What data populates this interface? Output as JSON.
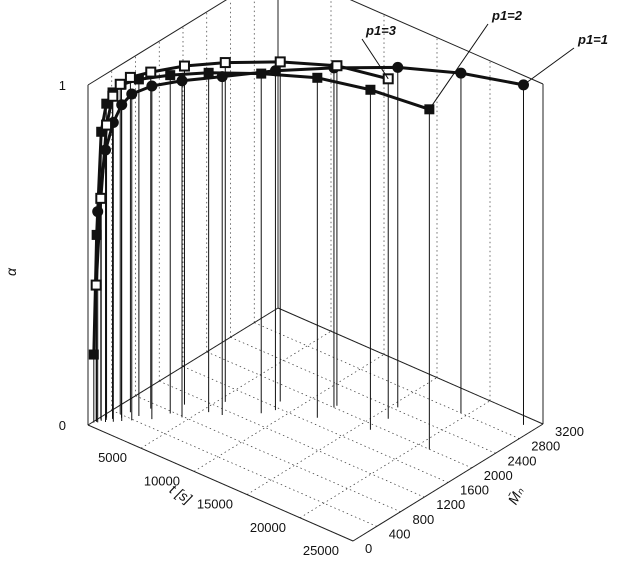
{
  "chart_data": {
    "type": "line",
    "projection": "3d",
    "title": "",
    "xlabel": "t [s]",
    "ylabel": "M̄ₙ",
    "zlabel": "α",
    "xlim": [
      0,
      25000
    ],
    "ylim": [
      0,
      3200
    ],
    "zlim": [
      0,
      1
    ],
    "x_ticks": [
      "5000",
      "10000",
      "15000",
      "20000",
      "25000"
    ],
    "y_ticks": [
      "0",
      "400",
      "800",
      "1200",
      "1600",
      "2000",
      "2400",
      "2800",
      "3200"
    ],
    "z_ticks": [
      "0",
      "1"
    ],
    "grid": true,
    "drop_lines": true,
    "series": [
      {
        "name": "p1=1",
        "marker": "circle",
        "points": [
          {
            "x": 300,
            "y": 110,
            "z": 0.62
          },
          {
            "x": 700,
            "y": 170,
            "z": 0.8
          },
          {
            "x": 1100,
            "y": 230,
            "z": 0.88
          },
          {
            "x": 1500,
            "y": 300,
            "z": 0.93
          },
          {
            "x": 2000,
            "y": 380,
            "z": 0.96
          },
          {
            "x": 3000,
            "y": 540,
            "z": 0.98
          },
          {
            "x": 4500,
            "y": 780,
            "z": 0.99
          },
          {
            "x": 6500,
            "y": 1100,
            "z": 0.995
          },
          {
            "x": 9000,
            "y": 1550,
            "z": 0.998
          },
          {
            "x": 12000,
            "y": 2000,
            "z": 0.999
          },
          {
            "x": 15500,
            "y": 2450,
            "z": 1.0
          },
          {
            "x": 19500,
            "y": 2800,
            "z": 1.0
          },
          {
            "x": 24000,
            "y": 3050,
            "z": 1.0
          }
        ]
      },
      {
        "name": "p1=2",
        "marker": "square",
        "points": [
          {
            "x": 100,
            "y": 80,
            "z": 0.2
          },
          {
            "x": 200,
            "y": 110,
            "z": 0.55
          },
          {
            "x": 350,
            "y": 160,
            "z": 0.85
          },
          {
            "x": 550,
            "y": 210,
            "z": 0.93
          },
          {
            "x": 800,
            "y": 270,
            "z": 0.96
          },
          {
            "x": 1200,
            "y": 350,
            "z": 0.98
          },
          {
            "x": 2000,
            "y": 500,
            "z": 0.99
          },
          {
            "x": 3500,
            "y": 760,
            "z": 0.995
          },
          {
            "x": 5500,
            "y": 1050,
            "z": 0.998
          },
          {
            "x": 8500,
            "y": 1400,
            "z": 0.999
          },
          {
            "x": 12000,
            "y": 1720,
            "z": 1.0
          },
          {
            "x": 16000,
            "y": 1900,
            "z": 1.0
          },
          {
            "x": 21000,
            "y": 2000,
            "z": 1.0
          }
        ]
      },
      {
        "name": "p1=3",
        "marker": "square-hollow",
        "points": [
          {
            "x": 100,
            "y": 120,
            "z": 0.4
          },
          {
            "x": 200,
            "y": 180,
            "z": 0.65
          },
          {
            "x": 350,
            "y": 250,
            "z": 0.86
          },
          {
            "x": 550,
            "y": 320,
            "z": 0.94
          },
          {
            "x": 800,
            "y": 400,
            "z": 0.97
          },
          {
            "x": 1200,
            "y": 500,
            "z": 0.985
          },
          {
            "x": 2000,
            "y": 700,
            "z": 0.99
          },
          {
            "x": 3500,
            "y": 1000,
            "z": 0.996
          },
          {
            "x": 5500,
            "y": 1330,
            "z": 0.998
          },
          {
            "x": 8500,
            "y": 1720,
            "z": 0.999
          },
          {
            "x": 12000,
            "y": 2050,
            "z": 1.0
          },
          {
            "x": 16000,
            "y": 2200,
            "z": 1.0
          }
        ]
      }
    ]
  }
}
